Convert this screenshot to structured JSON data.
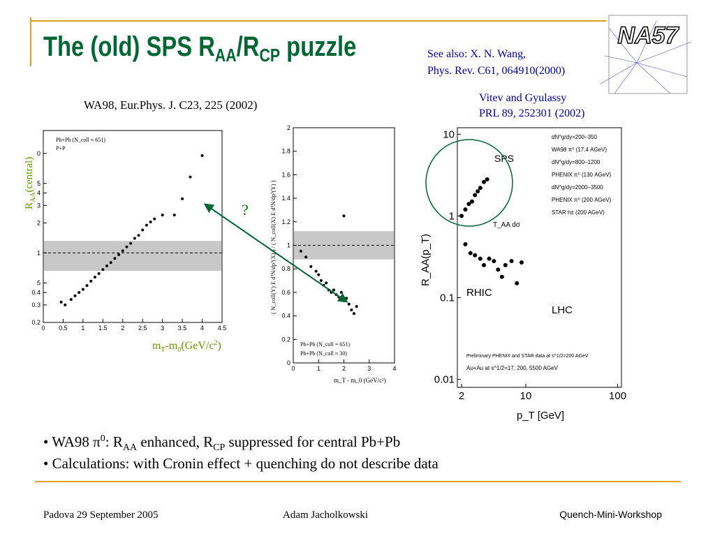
{
  "header": {
    "title": [
      "The (old) SPS R",
      "AA",
      "/R",
      "CP",
      " puzzle"
    ],
    "logo": "NA57"
  },
  "references": {
    "wang": [
      "See also: X. N. Wang,",
      "Phys. Rev. C61, 064910(2000)"
    ],
    "vitev": [
      "Vitev and Gyulassy",
      "PRL 89, 252301 (2002)"
    ],
    "wa98": "WA98, Eur.Phys. J. C23, 225 (2002)"
  },
  "annotations": {
    "raa": [
      "R",
      "AA"
    ],
    "rcp": [
      "R",
      "CP"
    ],
    "question": "?",
    "raa_axis": [
      "R",
      "AA",
      "(central)"
    ],
    "mt_axis": [
      "m",
      "T",
      "-m",
      "0",
      "(GeV/c",
      "2",
      ")"
    ]
  },
  "plots": [
    {
      "log_y": true,
      "xlim": [
        0,
        4.5
      ],
      "ylim": [
        0.2,
        17
      ],
      "xticks": [
        0,
        0.5,
        1,
        1.5,
        2,
        2.5,
        3,
        3.5,
        4,
        4.5
      ],
      "yticks": [
        0.2,
        0.3,
        0.4,
        {
          "value": 0.5,
          "label": "5"
        },
        1,
        2,
        3,
        4,
        5,
        {
          "value": 10,
          "label": "0"
        }
      ],
      "legend": [
        "Pb+Pb (N_coll ≈ 651)",
        "P+P"
      ],
      "band": [
        0.66,
        1.32
      ],
      "reference": 1,
      "series": [
        {
          "color": "#000000",
          "x": [
            0.45,
            0.55,
            0.7,
            0.8,
            0.9,
            1.0,
            1.1,
            1.2,
            1.3,
            1.4,
            1.5,
            1.6,
            1.7,
            1.8,
            1.9,
            2.0,
            2.1,
            2.2,
            2.3,
            2.4,
            2.5,
            2.6,
            2.7,
            2.8,
            3.0,
            3.3,
            3.5,
            3.7,
            4.0
          ],
          "y": [
            0.32,
            0.3,
            0.34,
            0.37,
            0.4,
            0.43,
            0.47,
            0.52,
            0.57,
            0.62,
            0.68,
            0.74,
            0.8,
            0.88,
            0.96,
            1.05,
            1.15,
            1.25,
            1.4,
            1.5,
            1.7,
            1.9,
            2.05,
            2.2,
            2.4,
            2.4,
            3.5,
            5.8,
            9.5
          ]
        }
      ]
    },
    {
      "log_y": false,
      "xlim": [
        0,
        4
      ],
      "ylim": [
        0,
        2
      ],
      "xticks": [
        0,
        1,
        2,
        3,
        4
      ],
      "yticks": [
        0,
        0.2,
        0.4,
        0.6,
        0.8,
        1,
        1.2,
        1.4,
        1.6,
        1.8,
        2
      ],
      "legend": [
        "Pb+Pb (N_coll = 651)",
        "Pb+Pb (N_coll ≈ 30)"
      ],
      "band": [
        0.88,
        1.12
      ],
      "reference": 1,
      "x_label": "m_T - m_0 (GeV/c²)",
      "y_label": "( N_coll(Y) E d³N/dp³(X) ) / ( N_coll(X) E d³N/dp³(Y) )",
      "series": [
        {
          "color": "#000000",
          "x": [
            0.3,
            0.5,
            0.7,
            0.9,
            1.0,
            1.1,
            1.2,
            1.3,
            1.4,
            1.5,
            1.6,
            1.7,
            1.8,
            1.9,
            2.0,
            2.1,
            2.2,
            2.3,
            2.4,
            2.5
          ],
          "y": [
            0.95,
            0.9,
            0.82,
            0.78,
            0.75,
            0.7,
            0.66,
            0.68,
            0.62,
            0.6,
            0.62,
            0.58,
            0.56,
            0.6,
            1.25,
            0.55,
            0.5,
            0.45,
            0.42,
            0.48
          ]
        }
      ]
    },
    {
      "log_x": true,
      "log_y": true,
      "xlim": [
        1.8,
        110
      ],
      "ylim": [
        0.008,
        12
      ],
      "xticks": [
        2,
        10,
        100
      ],
      "yticks": [
        0.01,
        0.1,
        1,
        10
      ],
      "legend": [
        "dN^g/dy=200–350",
        "WA98 π⁰ (17.4 AGeV)",
        "dN^g/dy=800–1200",
        "PHENIX π⁰ (130 AGeV)",
        "dN^g/dy=2000–3500",
        "PHENIX π⁰ (200 AGeV)",
        "STAR h± (200 AGeV)"
      ],
      "x_label": "p_T [GeV]",
      "y_label": "R_AA(p_T)",
      "labels": [
        "SPS",
        "RHIC",
        "LHC",
        "T_AA dσ"
      ],
      "notes": [
        "Preliminary PHENIX and STAR data at s^1/2=200 AGeV",
        "Au+Au at s^1/2=17, 200, 5500 AGeV"
      ],
      "series": [
        {
          "color": "#000000",
          "x": [
            2.0,
            2.2,
            2.4,
            2.6,
            2.8,
            3.0,
            3.2,
            3.5,
            3.8
          ],
          "y": [
            1.0,
            1.2,
            1.4,
            1.5,
            1.8,
            2.0,
            2.2,
            2.6,
            2.8
          ]
        },
        {
          "color": "#000000",
          "x": [
            2.2,
            2.5,
            2.8,
            3.2,
            3.5,
            4,
            4.5,
            5,
            5.5,
            6,
            7,
            8,
            9
          ],
          "y": [
            0.45,
            0.35,
            0.33,
            0.3,
            0.25,
            0.3,
            0.28,
            0.22,
            0.18,
            0.25,
            0.28,
            0.15,
            0.27
          ]
        }
      ]
    }
  ],
  "bullets": [
    [
      "• WA98 π",
      "0",
      ": R",
      "AA",
      " enhanced, R",
      "CP",
      " suppressed for central Pb+Pb"
    ],
    [
      "• Calculations: with Cronin effect + quenching do not describe data"
    ]
  ],
  "footer": {
    "left": "Padova 29 September 2005",
    "center": "Adam Jacholkowski",
    "right": "Quench-Mini-Workshop"
  }
}
